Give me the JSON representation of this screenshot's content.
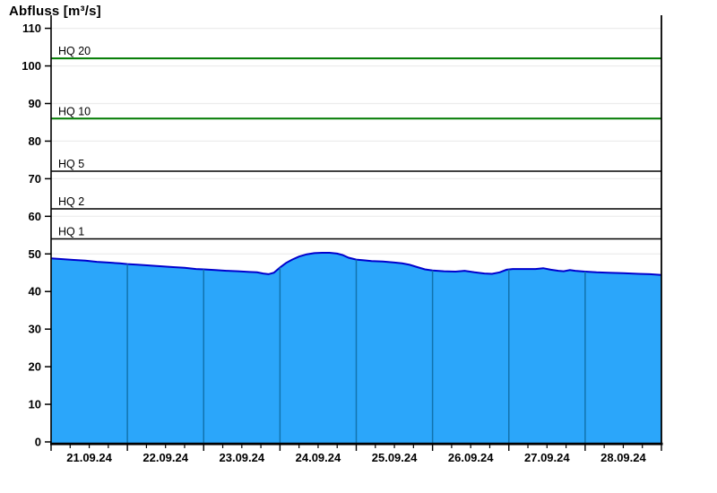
{
  "header": {
    "title": "Abfluss [m³/s]"
  },
  "chart_data": {
    "type": "area",
    "title": "Abfluss [m³/s]",
    "unit": "m³/s",
    "ylabel": "Abfluss [m³/s]",
    "xlabel": "",
    "ylim": [
      0,
      113
    ],
    "yticks": [
      0,
      10,
      20,
      30,
      40,
      50,
      60,
      70,
      80,
      90,
      100,
      110
    ],
    "grid": {
      "horizontal": true,
      "vertical_day_lines": true,
      "legend": "none"
    },
    "days": 8,
    "minor_ticks_per_day": 4,
    "x_categories": [
      "21.09.24",
      "22.09.24",
      "23.09.24",
      "24.09.24",
      "25.09.24",
      "26.09.24",
      "27.09.24",
      "28.09.24"
    ],
    "thresholds": [
      {
        "label": "HQ 20",
        "value": 102,
        "color": "#007a00",
        "width": 2
      },
      {
        "label": "HQ 10",
        "value": 86,
        "color": "#007a00",
        "width": 2
      },
      {
        "label": "HQ 5",
        "value": 72,
        "color": "#000000",
        "width": 1.5
      },
      {
        "label": "HQ 2",
        "value": 62,
        "color": "#000000",
        "width": 1.5
      },
      {
        "label": "HQ 1",
        "value": 54,
        "color": "#000000",
        "width": 1.5
      }
    ],
    "series": [
      {
        "name": "Abfluss",
        "unit": "m³/s",
        "points": [
          [
            0.0,
            48.8
          ],
          [
            0.15,
            48.6
          ],
          [
            0.3,
            48.4
          ],
          [
            0.45,
            48.2
          ],
          [
            0.6,
            47.9
          ],
          [
            0.75,
            47.7
          ],
          [
            0.9,
            47.5
          ],
          [
            1.0,
            47.3
          ],
          [
            1.15,
            47.1
          ],
          [
            1.3,
            46.9
          ],
          [
            1.45,
            46.7
          ],
          [
            1.6,
            46.5
          ],
          [
            1.75,
            46.3
          ],
          [
            1.9,
            46.0
          ],
          [
            2.0,
            45.9
          ],
          [
            2.15,
            45.7
          ],
          [
            2.3,
            45.5
          ],
          [
            2.45,
            45.4
          ],
          [
            2.6,
            45.2
          ],
          [
            2.7,
            45.1
          ],
          [
            2.78,
            44.8
          ],
          [
            2.85,
            44.6
          ],
          [
            2.92,
            45.0
          ],
          [
            3.0,
            46.4
          ],
          [
            3.08,
            47.6
          ],
          [
            3.16,
            48.5
          ],
          [
            3.25,
            49.3
          ],
          [
            3.35,
            49.9
          ],
          [
            3.45,
            50.2
          ],
          [
            3.55,
            50.3
          ],
          [
            3.65,
            50.3
          ],
          [
            3.75,
            50.1
          ],
          [
            3.82,
            49.7
          ],
          [
            3.9,
            49.0
          ],
          [
            4.0,
            48.5
          ],
          [
            4.1,
            48.3
          ],
          [
            4.2,
            48.1
          ],
          [
            4.35,
            48.0
          ],
          [
            4.5,
            47.7
          ],
          [
            4.6,
            47.5
          ],
          [
            4.7,
            47.1
          ],
          [
            4.8,
            46.5
          ],
          [
            4.9,
            45.9
          ],
          [
            5.0,
            45.6
          ],
          [
            5.15,
            45.4
          ],
          [
            5.3,
            45.3
          ],
          [
            5.42,
            45.5
          ],
          [
            5.55,
            45.1
          ],
          [
            5.68,
            44.8
          ],
          [
            5.78,
            44.7
          ],
          [
            5.88,
            45.1
          ],
          [
            5.97,
            45.8
          ],
          [
            6.05,
            46.0
          ],
          [
            6.2,
            46.0
          ],
          [
            6.35,
            46.0
          ],
          [
            6.45,
            46.2
          ],
          [
            6.55,
            45.8
          ],
          [
            6.65,
            45.5
          ],
          [
            6.72,
            45.4
          ],
          [
            6.8,
            45.7
          ],
          [
            6.87,
            45.5
          ],
          [
            7.0,
            45.3
          ],
          [
            7.15,
            45.1
          ],
          [
            7.3,
            45.0
          ],
          [
            7.5,
            44.9
          ],
          [
            7.7,
            44.7
          ],
          [
            7.85,
            44.6
          ],
          [
            8.0,
            44.4
          ]
        ]
      }
    ],
    "colors": {
      "area_fill": "#2ba6fa",
      "area_stroke": "#0000cd",
      "day_gridline": "#1273ae",
      "grid_light": "#ececec",
      "axis": "#000000",
      "background": "#ffffff"
    }
  }
}
